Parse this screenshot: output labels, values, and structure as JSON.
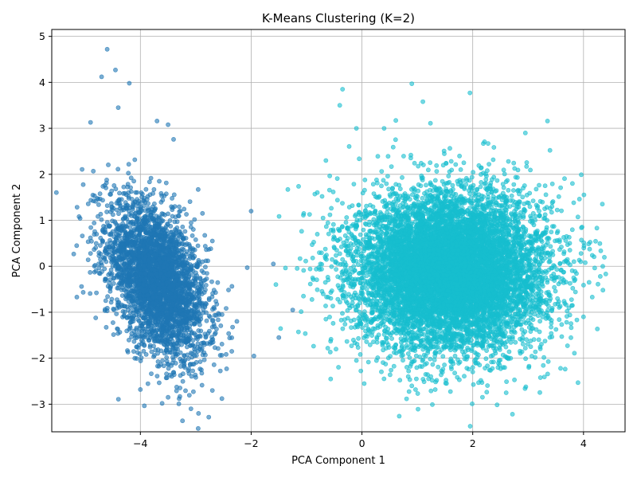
{
  "chart_data": {
    "type": "scatter",
    "title": "K-Means Clustering (K=2)",
    "xlabel": "PCA Component 1",
    "ylabel": "PCA Component 2",
    "xlim": [
      -5.6,
      4.75
    ],
    "ylim": [
      -3.6,
      5.15
    ],
    "x_ticks": [
      -4,
      -2,
      0,
      2,
      4
    ],
    "y_ticks": [
      -3,
      -2,
      -1,
      0,
      1,
      2,
      3,
      4,
      5
    ],
    "x_tick_labels": [
      "−4",
      "−2",
      "0",
      "2",
      "4"
    ],
    "y_tick_labels": [
      "−3",
      "−2",
      "−1",
      "0",
      "1",
      "2",
      "3",
      "4",
      "5"
    ],
    "grid": true,
    "legend": "none",
    "marker": "circle",
    "alpha": 0.6,
    "series": [
      {
        "color": "#1f77b4",
        "n_points": 3400,
        "center": [
          -3.7,
          -0.3
        ],
        "spread": [
          0.45,
          0.85
        ],
        "correlation": -0.45,
        "sample_points": [
          [
            -4.6,
            4.72
          ],
          [
            -4.7,
            4.12
          ],
          [
            -4.45,
            4.27
          ],
          [
            -4.2,
            3.98
          ],
          [
            -4.4,
            3.45
          ],
          [
            -4.9,
            3.13
          ],
          [
            -3.7,
            3.16
          ],
          [
            -3.5,
            3.08
          ],
          [
            -3.4,
            2.76
          ],
          [
            -4.85,
            2.07
          ],
          [
            -5.15,
            0.45
          ],
          [
            -4.9,
            0.28
          ],
          [
            -4.6,
            -0.97
          ],
          [
            -4.1,
            -2.0
          ],
          [
            -4.0,
            -2.68
          ],
          [
            -3.5,
            -2.85
          ],
          [
            -3.3,
            -2.88
          ],
          [
            -2.95,
            -3.2
          ],
          [
            -2.7,
            -2.7
          ],
          [
            -2.0,
            1.2
          ],
          [
            -1.6,
            0.05
          ],
          [
            -1.5,
            -1.55
          ],
          [
            -1.95,
            -1.95
          ],
          [
            -1.25,
            -0.95
          ],
          [
            -2.35,
            -1.85
          ],
          [
            -3.2,
            -2.2
          ],
          [
            -2.7,
            0.55
          ]
        ]
      },
      {
        "color": "#17becf",
        "n_points": 9000,
        "center": [
          1.6,
          -0.1
        ],
        "spread": [
          0.85,
          0.85
        ],
        "correlation": 0.0,
        "sample_points": [
          [
            0.9,
            3.97
          ],
          [
            -0.35,
            3.85
          ],
          [
            1.95,
            3.77
          ],
          [
            1.1,
            3.58
          ],
          [
            3.35,
            3.16
          ],
          [
            -0.4,
            3.5
          ],
          [
            -0.1,
            3.0
          ],
          [
            0.4,
            3.0
          ],
          [
            -0.65,
            2.3
          ],
          [
            -0.85,
            1.57
          ],
          [
            -1.05,
            1.15
          ],
          [
            -0.9,
            0.47
          ],
          [
            -0.75,
            0.05
          ],
          [
            -0.7,
            -0.6
          ],
          [
            -0.1,
            -2.05
          ],
          [
            0.9,
            -2.6
          ],
          [
            1.15,
            -2.35
          ],
          [
            2.0,
            -2.2
          ],
          [
            2.55,
            -2.2
          ],
          [
            3.8,
            1.8
          ],
          [
            3.8,
            -0.85
          ],
          [
            4.0,
            -1.1
          ],
          [
            4.1,
            -0.35
          ],
          [
            4.35,
            -0.52
          ],
          [
            3.6,
            0.42
          ],
          [
            3.95,
            0.1
          ],
          [
            3.3,
            1.25
          ],
          [
            2.95,
            2.9
          ]
        ]
      }
    ]
  }
}
